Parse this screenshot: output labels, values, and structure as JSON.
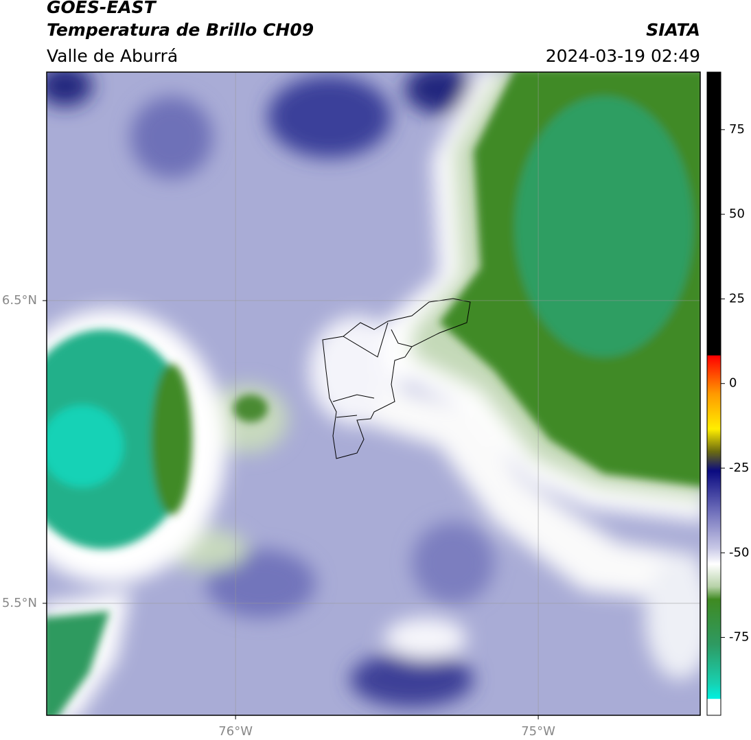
{
  "header": {
    "title": "GOES-EAST",
    "subtitle": "Temperatura de Brillo CH09",
    "region": "Valle de Aburrá",
    "source": "SIATA",
    "datetime": "2024-03-19 02:49"
  },
  "map": {
    "xlim": [
      -76.624,
      -74.465
    ],
    "ylim": [
      5.13,
      7.255
    ],
    "xticks": [
      {
        "value": -76,
        "label": "76°W"
      },
      {
        "value": -75,
        "label": "75°W"
      }
    ],
    "yticks": [
      {
        "value": 6.5,
        "label": "6.5°N"
      },
      {
        "value": 5.5,
        "label": "5.5°N"
      }
    ],
    "grid": true
  },
  "colorbar": {
    "lim": [
      -98,
      92
    ],
    "ticks": [
      75,
      50,
      25,
      0,
      -25,
      -50,
      -75
    ]
  }
}
